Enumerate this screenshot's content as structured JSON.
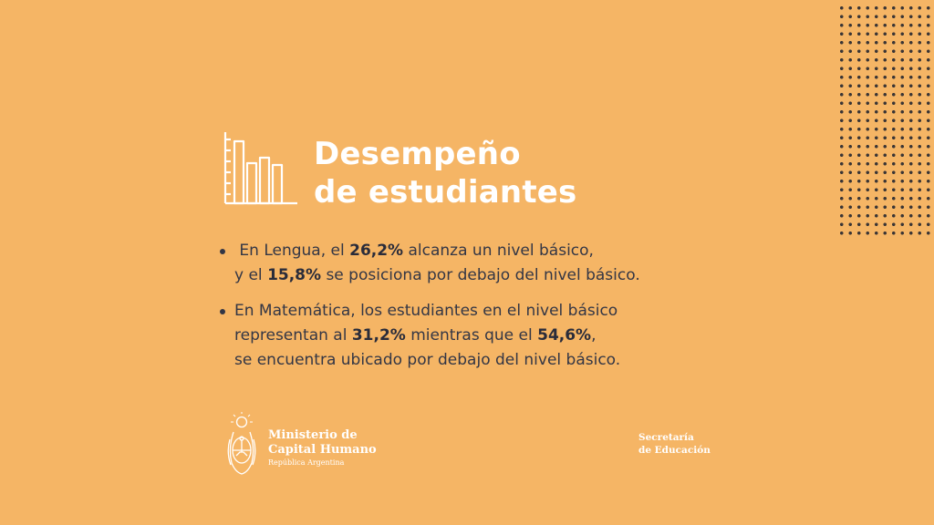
{
  "title": {
    "line1": "Desempeño",
    "line2": "de estudiantes"
  },
  "icons": {
    "header": "bar-chart-icon",
    "seal": "coat-of-arms-icon"
  },
  "bullets": [
    {
      "lines": [
        [
          " En Lengua, el ",
          "26,2%",
          " alcanza un nivel básico,"
        ],
        [
          "y el ",
          "15,8%",
          " se posiciona por debajo del nivel básico."
        ]
      ]
    },
    {
      "lines": [
        [
          "En Matemática, los estudiantes en el nivel básico"
        ],
        [
          "representan al ",
          "31,2%",
          " mientras que el ",
          "54,6%",
          ","
        ],
        [
          "se encuentra ubicado por debajo del nivel básico."
        ]
      ]
    }
  ],
  "footer": {
    "ministry_line1": "Ministerio de",
    "ministry_line2": "Capital Humano",
    "ministry_line3": "República Argentina",
    "secretaria_line1": "Secretaría",
    "secretaria_line2": "de Educación"
  },
  "colors": {
    "background": "#F5B565",
    "text": "#333645",
    "title": "#FFFFFF",
    "dots": "#3A3535"
  }
}
